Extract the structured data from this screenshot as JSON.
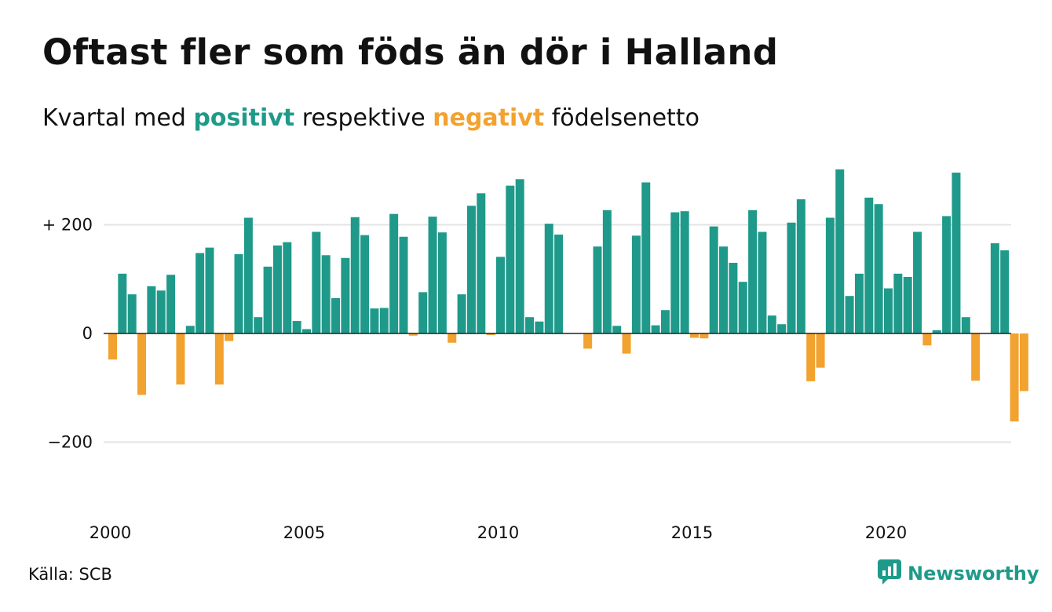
{
  "header": {
    "title": "Oftast fler som föds än dör i Halland",
    "subtitle_pre": "Kvartal med",
    "subtitle_positive": "positivt",
    "subtitle_mid": "respektive",
    "subtitle_negative": "negativt",
    "subtitle_post": "födelsenetto"
  },
  "footer": {
    "source": "Källa: SCB",
    "brand": "Newsworthy",
    "brand_icon": "newsworthy-logo-icon"
  },
  "colors": {
    "positive": "#1f9a8a",
    "negative": "#f2a22f",
    "grid": "#e3e3e3",
    "zero_line": "#222222"
  },
  "chart_data": {
    "type": "bar",
    "title": "Oftast fler som föds än dör i Halland",
    "subtitle": "Kvartal med positivt respektive negativt födelsenetto",
    "xlabel": "",
    "ylabel": "",
    "ylim": [
      -300,
      300
    ],
    "y_ticks": [
      {
        "value": 200,
        "label": "+ 200"
      },
      {
        "value": 0,
        "label": "0"
      },
      {
        "value": -200,
        "label": "−200"
      }
    ],
    "x_ticks": [
      "2000",
      "2005",
      "2010",
      "2015",
      "2020"
    ],
    "grid": true,
    "start": "2000 Q1",
    "frequency": "quarterly",
    "values": [
      -48,
      110,
      72,
      -113,
      87,
      79,
      108,
      -94,
      14,
      148,
      158,
      -94,
      -14,
      146,
      213,
      30,
      123,
      162,
      168,
      23,
      8,
      187,
      144,
      65,
      139,
      214,
      181,
      46,
      47,
      220,
      178,
      -4,
      76,
      215,
      186,
      -17,
      72,
      235,
      258,
      -3,
      141,
      272,
      284,
      30,
      22,
      202,
      182,
      0,
      0,
      -28,
      160,
      227,
      14,
      -37,
      180,
      278,
      15,
      43,
      223,
      225,
      -8,
      -9,
      197,
      160,
      130,
      95,
      227,
      187,
      33,
      17,
      204,
      247,
      -88,
      -63,
      213,
      302,
      69,
      110,
      250,
      238,
      83,
      110,
      104,
      187,
      -22,
      6,
      216,
      296,
      30,
      -87,
      0,
      166,
      153,
      -162,
      -106
    ]
  }
}
